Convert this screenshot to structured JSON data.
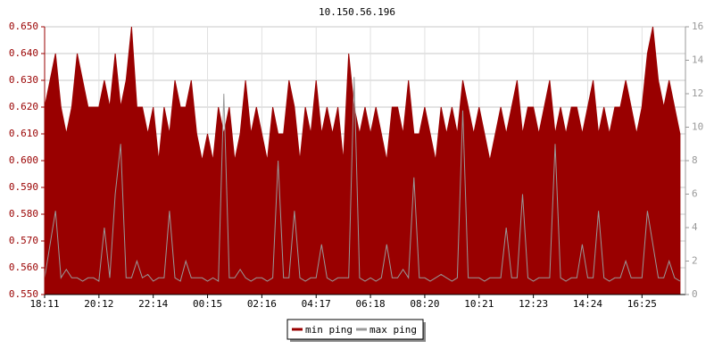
{
  "chart_data": {
    "type": "area",
    "title": "10.150.56.196",
    "categories": [
      "18:11",
      null,
      null,
      null,
      null,
      null,
      null,
      null,
      null,
      null,
      "20:12",
      null,
      null,
      null,
      null,
      null,
      null,
      null,
      null,
      null,
      "22:14",
      null,
      null,
      null,
      null,
      null,
      null,
      null,
      null,
      null,
      "00:15",
      null,
      null,
      null,
      null,
      null,
      null,
      null,
      null,
      null,
      "02:16",
      null,
      null,
      null,
      null,
      null,
      null,
      null,
      null,
      null,
      "04:17",
      null,
      null,
      null,
      null,
      null,
      null,
      null,
      null,
      null,
      "06:18",
      null,
      null,
      null,
      null,
      null,
      null,
      null,
      null,
      null,
      "08:20",
      null,
      null,
      null,
      null,
      null,
      null,
      null,
      null,
      null,
      "10:21",
      null,
      null,
      null,
      null,
      null,
      null,
      null,
      null,
      null,
      "12:23",
      null,
      null,
      null,
      null,
      null,
      null,
      null,
      null,
      null,
      "14:24",
      null,
      null,
      null,
      null,
      null,
      null,
      null,
      null,
      null,
      "16:25",
      null,
      null,
      null,
      null,
      null,
      null,
      null
    ],
    "series": [
      {
        "name": "min ping",
        "color": "#990000",
        "axis": "y",
        "values": [
          0.62,
          0.63,
          0.64,
          0.62,
          0.61,
          0.62,
          0.64,
          0.63,
          0.62,
          0.62,
          0.62,
          0.63,
          0.62,
          0.64,
          0.62,
          0.63,
          0.65,
          0.62,
          0.62,
          0.61,
          0.62,
          0.6,
          0.62,
          0.61,
          0.63,
          0.62,
          0.62,
          0.63,
          0.61,
          0.6,
          0.61,
          0.6,
          0.62,
          0.61,
          0.62,
          0.6,
          0.61,
          0.63,
          0.61,
          0.62,
          0.61,
          0.6,
          0.62,
          0.61,
          0.61,
          0.63,
          0.62,
          0.6,
          0.62,
          0.61,
          0.63,
          0.61,
          0.62,
          0.61,
          0.62,
          0.6,
          0.64,
          0.62,
          0.61,
          0.62,
          0.61,
          0.62,
          0.61,
          0.6,
          0.62,
          0.62,
          0.61,
          0.63,
          0.61,
          0.61,
          0.62,
          0.61,
          0.6,
          0.62,
          0.61,
          0.62,
          0.61,
          0.63,
          0.62,
          0.61,
          0.62,
          0.61,
          0.6,
          0.61,
          0.62,
          0.61,
          0.62,
          0.63,
          0.61,
          0.62,
          0.62,
          0.61,
          0.62,
          0.63,
          0.61,
          0.62,
          0.61,
          0.62,
          0.62,
          0.61,
          0.62,
          0.63,
          0.61,
          0.62,
          0.61,
          0.62,
          0.62,
          0.63,
          0.62,
          0.61,
          0.62,
          0.64,
          0.65,
          0.63,
          0.62,
          0.63,
          0.62,
          0.61
        ]
      },
      {
        "name": "max ping",
        "color": "#999999",
        "axis": "y2",
        "values": [
          1,
          3,
          5,
          1,
          1.5,
          1,
          1,
          0.8,
          1,
          1,
          0.8,
          4,
          1,
          6,
          9,
          1,
          1,
          2,
          1,
          1.2,
          0.8,
          1,
          1,
          5,
          1,
          0.8,
          2,
          1,
          1,
          1,
          0.8,
          1,
          0.8,
          12,
          1,
          1,
          1.5,
          1,
          0.8,
          1,
          1,
          0.8,
          1,
          8,
          1,
          1,
          5,
          1,
          0.8,
          1,
          1,
          3,
          1,
          0.8,
          1,
          1,
          1,
          13,
          1,
          0.8,
          1,
          0.8,
          1,
          3,
          1,
          1,
          1.5,
          1,
          7,
          1,
          1,
          0.8,
          1,
          1.2,
          1,
          0.8,
          1,
          11,
          1,
          1,
          1,
          0.8,
          1,
          1,
          1,
          4,
          1,
          1,
          6,
          1,
          0.8,
          1,
          1,
          1,
          9,
          1,
          0.8,
          1,
          1,
          3,
          1,
          1,
          5,
          1,
          0.8,
          1,
          1,
          2,
          1,
          1,
          1,
          5,
          3,
          1,
          1,
          2,
          1,
          0.8
        ]
      }
    ],
    "ylim": [
      0.55,
      0.65
    ],
    "yticks": [
      {
        "value": 0.55,
        "label": "0.550"
      },
      {
        "value": 0.56,
        "label": "0.560"
      },
      {
        "value": 0.57,
        "label": "0.570"
      },
      {
        "value": 0.58,
        "label": "0.580"
      },
      {
        "value": 0.59,
        "label": "0.590"
      },
      {
        "value": 0.6,
        "label": "0.600"
      },
      {
        "value": 0.61,
        "label": "0.610"
      },
      {
        "value": 0.62,
        "label": "0.620"
      },
      {
        "value": 0.63,
        "label": "0.630"
      },
      {
        "value": 0.64,
        "label": "0.640"
      },
      {
        "value": 0.65,
        "label": "0.650"
      }
    ],
    "y2lim": [
      0,
      16
    ],
    "y2ticks": [
      0,
      2,
      4,
      6,
      8,
      10,
      12,
      14,
      16
    ],
    "grid": true,
    "legend": "bottom"
  }
}
